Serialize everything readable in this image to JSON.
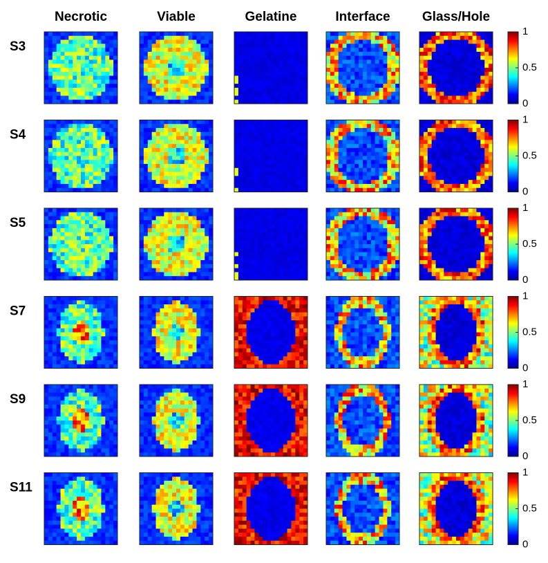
{
  "columns": [
    "Necrotic",
    "Viable",
    "Gelatine",
    "Interface",
    "Glass/Hole"
  ],
  "rows": [
    "S3",
    "S4",
    "S5",
    "S7",
    "S9",
    "S11"
  ],
  "colorbar": {
    "ticks": [
      1,
      0.5,
      0
    ]
  }
}
